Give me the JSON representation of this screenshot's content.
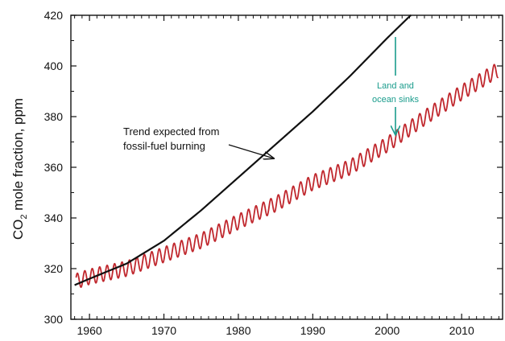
{
  "chart_data": {
    "type": "line",
    "ylabel_main": "CO",
    "ylabel_sub": "2",
    "ylabel_rest": " mole fraction, ppm",
    "xlim": [
      1957.5,
      2015.5
    ],
    "ylim": [
      300,
      420
    ],
    "xticks": [
      "1960",
      "1970",
      "1980",
      "1990",
      "2000",
      "2010"
    ],
    "xtick_values": [
      1960,
      1970,
      1980,
      1990,
      2000,
      2010
    ],
    "yticks": [
      "300",
      "320",
      "340",
      "360",
      "380",
      "400",
      "420"
    ],
    "ytick_values": [
      300,
      320,
      340,
      360,
      380,
      400,
      420
    ],
    "grid": false,
    "series": [
      {
        "role": "expected-trend",
        "color": "#111111",
        "x": [
          1958.0,
          1960,
          1965,
          1970,
          1975,
          1980,
          1985,
          1990,
          1995,
          2000,
          2003.5
        ],
        "y": [
          313.5,
          316,
          322,
          331,
          343,
          356,
          369,
          382,
          396,
          411,
          421
        ]
      },
      {
        "role": "observed",
        "color": "#c0282e",
        "x_start": 1958.2,
        "x_end": 2014.9,
        "seasonal_amplitude_ppm": 3.0,
        "trend_x": [
          1958.2,
          1960,
          1965,
          1970,
          1975,
          1980,
          1985,
          1990,
          1995,
          2000,
          2005,
          2010,
          2014.9
        ],
        "trend_y": [
          315.0,
          316.8,
          320.0,
          325.5,
          331.0,
          338.5,
          345.5,
          354.0,
          360.0,
          369.0,
          379.5,
          389.5,
          398.5
        ]
      }
    ],
    "annotations": [
      {
        "id": "trend-label",
        "lines": [
          "Trend expected from",
          "fossil-fuel burning"
        ],
        "color": "#111111"
      },
      {
        "id": "sinks-label",
        "lines": [
          "Land and",
          "ocean sinks"
        ],
        "color": "#1a9c8c"
      }
    ]
  }
}
